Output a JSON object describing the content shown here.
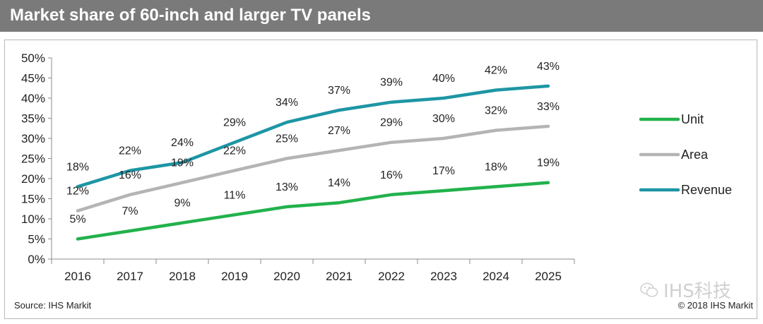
{
  "title": "Market share of 60-inch and larger TV panels",
  "source": "Source: IHS Markit",
  "copyright": "© 2018 IHS Markit",
  "watermark": "IHS科技",
  "icons": {
    "watermark_icon": "wechat-icon"
  },
  "colors": {
    "title_bar": "#7a7a7a",
    "Unit": "#22b24c",
    "Area": "#b4b4b4",
    "Revenue": "#1d96a4"
  },
  "chart_data": {
    "type": "line",
    "title": "Market share of 60-inch and larger TV panels",
    "xlabel": "",
    "ylabel": "",
    "x": [
      "2016",
      "2017",
      "2018",
      "2019",
      "2020",
      "2021",
      "2022",
      "2023",
      "2024",
      "2025"
    ],
    "ylim": [
      0,
      50
    ],
    "yticks": [
      "0%",
      "5%",
      "10%",
      "15%",
      "20%",
      "25%",
      "30%",
      "35%",
      "40%",
      "45%",
      "50%"
    ],
    "grid": false,
    "legend_position": "right",
    "series": [
      {
        "name": "Unit",
        "values": [
          5,
          7,
          9,
          11,
          13,
          14,
          16,
          17,
          18,
          19
        ],
        "labels": [
          "5%",
          "7%",
          "9%",
          "11%",
          "13%",
          "14%",
          "16%",
          "17%",
          "18%",
          "19%"
        ]
      },
      {
        "name": "Area",
        "values": [
          12,
          16,
          19,
          22,
          25,
          27,
          29,
          30,
          32,
          33
        ],
        "labels": [
          "12%",
          "16%",
          "19%",
          "22%",
          "25%",
          "27%",
          "29%",
          "30%",
          "32%",
          "33%"
        ]
      },
      {
        "name": "Revenue",
        "values": [
          18,
          22,
          24,
          29,
          34,
          37,
          39,
          40,
          42,
          43
        ],
        "labels": [
          "18%",
          "22%",
          "24%",
          "29%",
          "34%",
          "37%",
          "39%",
          "40%",
          "42%",
          "43%"
        ]
      }
    ]
  }
}
